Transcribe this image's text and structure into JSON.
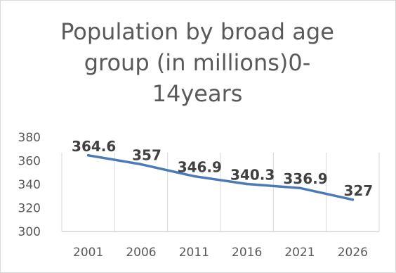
{
  "chart_data": {
    "type": "line",
    "title": "Population by broad age group (in millions)0-\n14years",
    "categories": [
      "2001",
      "2006",
      "2011",
      "2016",
      "2021",
      "2026"
    ],
    "series": [
      {
        "values": [
          364.6,
          357,
          346.9,
          340.3,
          336.9,
          327
        ]
      }
    ],
    "data_labels": [
      "364.6",
      "357",
      "346.9",
      "340.3",
      "336.9",
      "327"
    ],
    "y_ticks": [
      "300",
      "320",
      "340",
      "360",
      "380"
    ],
    "ylim": [
      300,
      380
    ],
    "grid": "vertical",
    "legend": "none",
    "line_color": "#4a7ab8",
    "grid_color": "#d9d9d9",
    "axis_color": "#bfbfbf"
  }
}
